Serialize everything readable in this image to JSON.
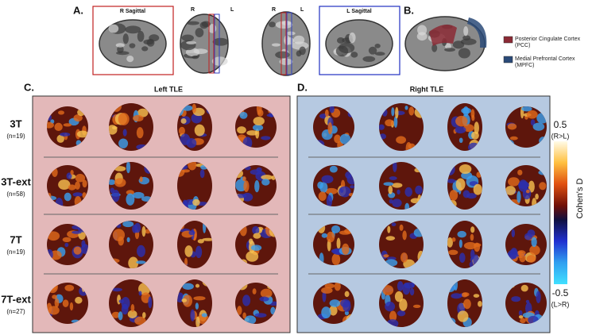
{
  "panel_a": {
    "label": "A.",
    "r_sagittal": "R Sagittal",
    "coronal_r": "R",
    "coronal_l": "L",
    "axial_r": "R",
    "axial_l": "L",
    "l_sagittal": "L Sagittal"
  },
  "panel_b": {
    "label": "B.",
    "legend": [
      "Posterior Cingulate Cortex (PCC)",
      "Medial Prefrontal Cortex (MPFC)"
    ]
  },
  "panel_c": {
    "label": "C.",
    "title": "Left TLE"
  },
  "panel_d": {
    "label": "D.",
    "title": "Right TLE"
  },
  "rows": [
    {
      "label": "3T",
      "n": "(n=19)"
    },
    {
      "label": "3T-ext",
      "n": "(n=58)"
    },
    {
      "label": "7T",
      "n": "(n=19)"
    },
    {
      "label": "7T-ext",
      "n": "(n=27)"
    }
  ],
  "colorbar": {
    "max": "0.5",
    "max_note": "(R>L)",
    "title": "Cohen's D",
    "min": "-0.5",
    "min_note": "(L>R)"
  }
}
